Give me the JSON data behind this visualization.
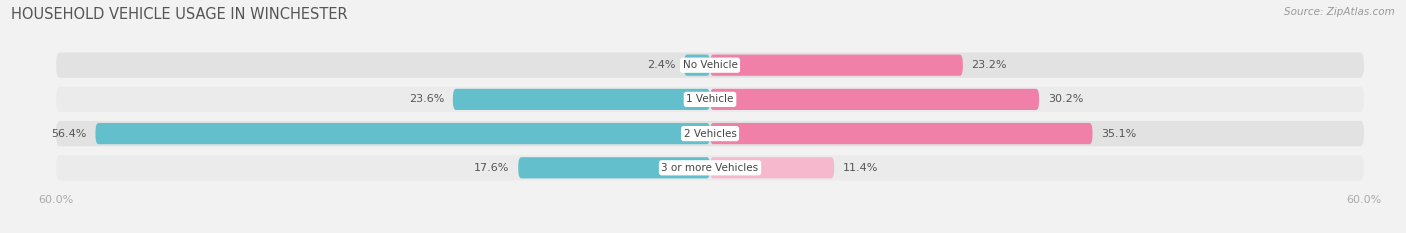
{
  "title": "HOUSEHOLD VEHICLE USAGE IN WINCHESTER",
  "source": "Source: ZipAtlas.com",
  "categories": [
    "No Vehicle",
    "1 Vehicle",
    "2 Vehicles",
    "3 or more Vehicles"
  ],
  "owner_values": [
    2.4,
    23.6,
    56.4,
    17.6
  ],
  "renter_values": [
    23.2,
    30.2,
    35.1,
    11.4
  ],
  "owner_color": "#62bfcb",
  "renter_color": "#f080a8",
  "renter_light_color": "#f5b8cc",
  "axis_max": 60.0,
  "x_tick_label": "60.0%",
  "bg_color": "#f2f2f2",
  "row_bg_dark": "#e2e2e2",
  "row_bg_light": "#ebebeb",
  "title_fontsize": 10.5,
  "source_fontsize": 7.5,
  "label_fontsize": 8,
  "category_fontsize": 7.5,
  "tick_fontsize": 8
}
